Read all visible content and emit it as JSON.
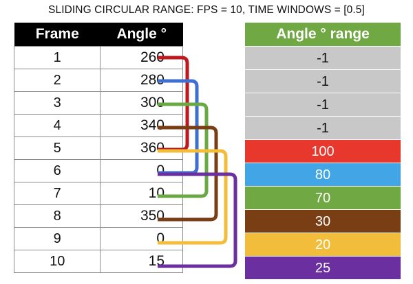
{
  "title": "SLIDING CIRCULAR RANGE: FPS = 10, TIME WINDOWS = [0.5]",
  "left_table": {
    "col_frame": "Frame",
    "col_angle": "Angle °",
    "rows": [
      {
        "frame": "1",
        "angle": "260"
      },
      {
        "frame": "2",
        "angle": "280"
      },
      {
        "frame": "3",
        "angle": "300"
      },
      {
        "frame": "4",
        "angle": "340"
      },
      {
        "frame": "5",
        "angle": "360"
      },
      {
        "frame": "6",
        "angle": "0"
      },
      {
        "frame": "7",
        "angle": "10"
      },
      {
        "frame": "8",
        "angle": "350"
      },
      {
        "frame": "9",
        "angle": "0"
      },
      {
        "frame": "10",
        "angle": "15"
      }
    ]
  },
  "right_table": {
    "header": "Angle ° range",
    "header_color": "#70a844",
    "rows": [
      {
        "value": "-1",
        "bg": "#c8c8c8",
        "fg": "#111111"
      },
      {
        "value": "-1",
        "bg": "#c8c8c8",
        "fg": "#111111"
      },
      {
        "value": "-1",
        "bg": "#c8c8c8",
        "fg": "#111111"
      },
      {
        "value": "-1",
        "bg": "#c8c8c8",
        "fg": "#111111"
      },
      {
        "value": "100",
        "bg": "#e8382d",
        "fg": "#ffffff"
      },
      {
        "value": "80",
        "bg": "#42a6e6",
        "fg": "#ffffff"
      },
      {
        "value": "70",
        "bg": "#70a844",
        "fg": "#ffffff"
      },
      {
        "value": "30",
        "bg": "#7a3e14",
        "fg": "#ffffff"
      },
      {
        "value": "20",
        "bg": "#f2bd3a",
        "fg": "#ffffff"
      },
      {
        "value": "25",
        "bg": "#6b2fa0",
        "fg": "#ffffff"
      }
    ]
  },
  "windows": [
    {
      "from_frame": 1,
      "to_frame": 5,
      "color": "#c0181f"
    },
    {
      "from_frame": 2,
      "to_frame": 6,
      "color": "#3f6fd1"
    },
    {
      "from_frame": 3,
      "to_frame": 7,
      "color": "#6aa843"
    },
    {
      "from_frame": 4,
      "to_frame": 8,
      "color": "#7a3e14"
    },
    {
      "from_frame": 5,
      "to_frame": 9,
      "color": "#f2bd3a"
    },
    {
      "from_frame": 6,
      "to_frame": 10,
      "color": "#6b2fa0"
    }
  ]
}
